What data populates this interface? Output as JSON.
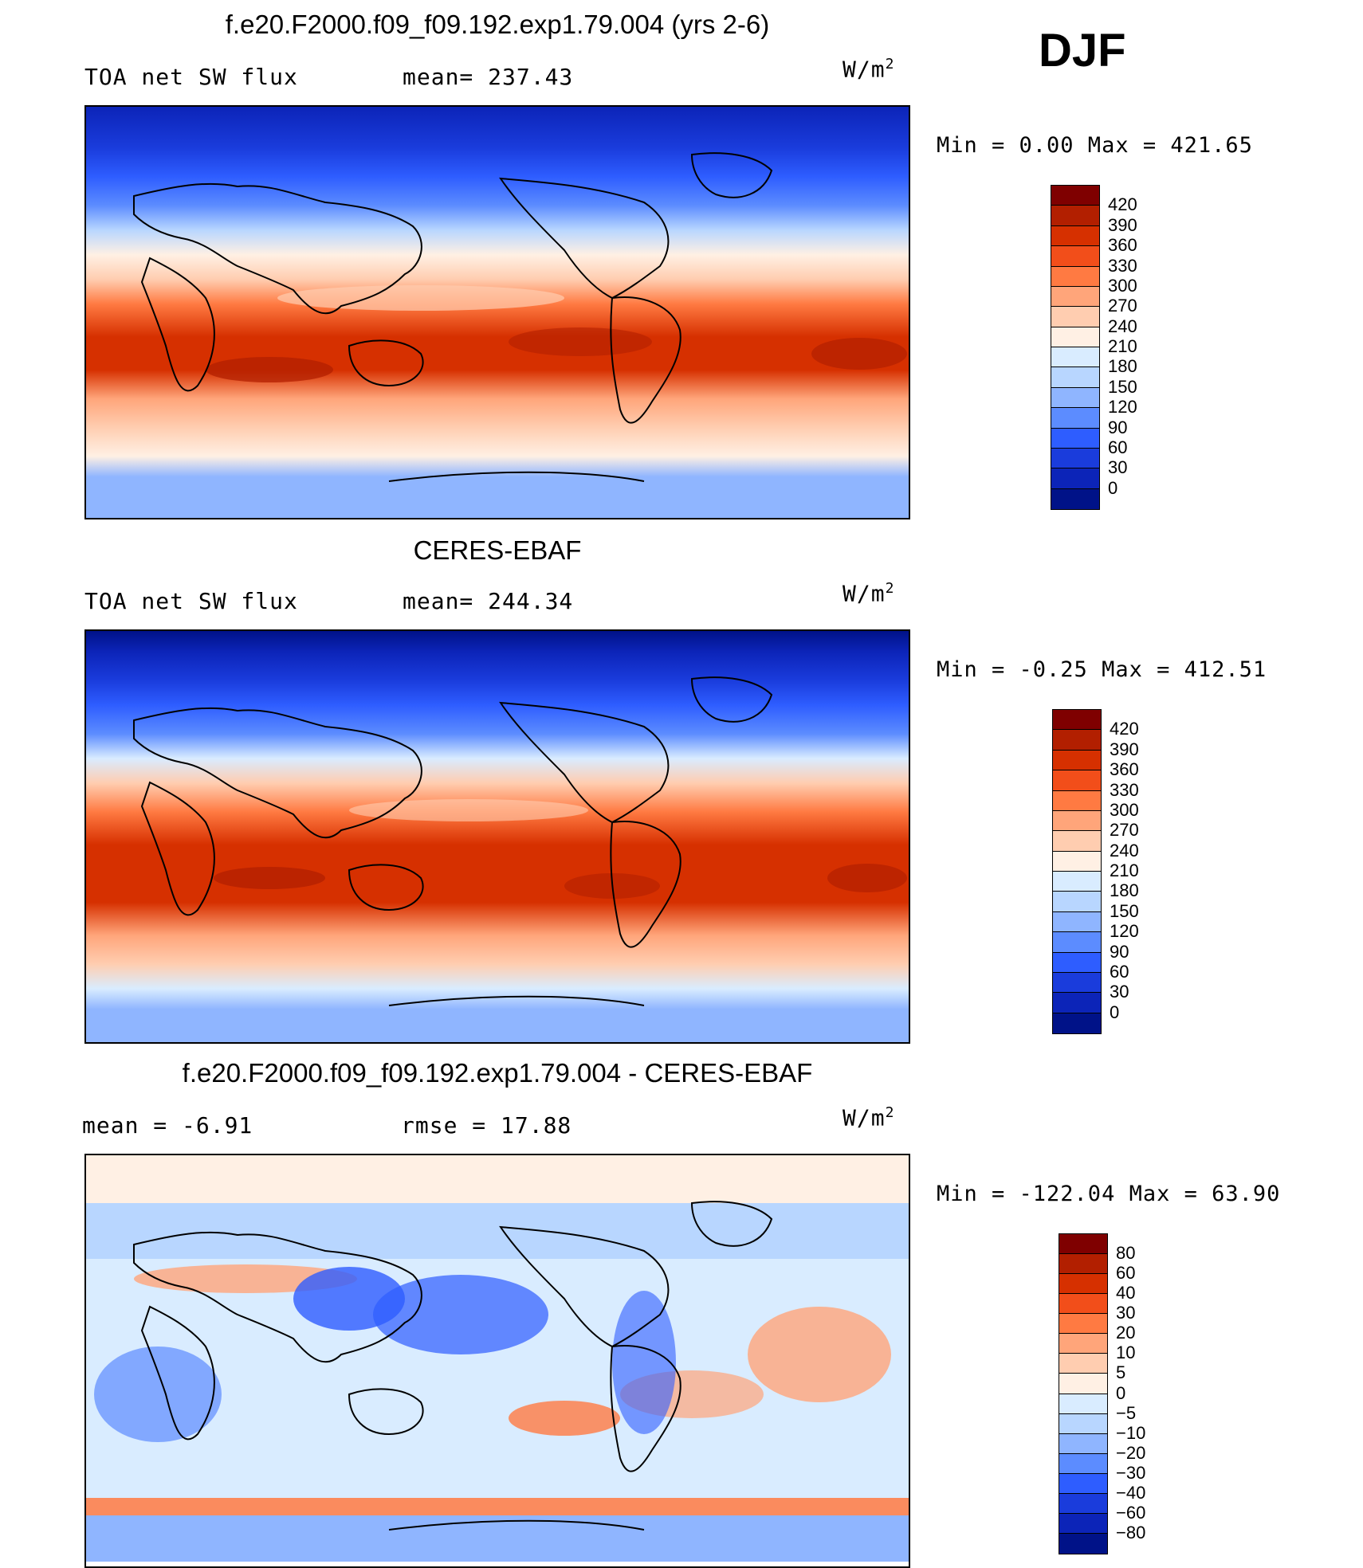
{
  "season": "DJF",
  "panels": [
    {
      "title": "f.e20.F2000.f09_f09.192.exp1.79.004 (yrs 2-6)",
      "left_label": "TOA net SW flux",
      "center_label": "mean= 237.43",
      "units_base": "W/m",
      "units_exp": "2",
      "minmax": "Min =    0.00 Max = 421.65",
      "colorbar": {
        "labels": [
          "420",
          "390",
          "360",
          "330",
          "300",
          "270",
          "240",
          "210",
          "180",
          "150",
          "120",
          "90",
          "60",
          "30",
          "0"
        ],
        "colors": [
          "#7f0000",
          "#b21f00",
          "#d63000",
          "#f24e1a",
          "#ff7a42",
          "#ffa57a",
          "#ffcdb0",
          "#fff0e4",
          "#d9ecff",
          "#b8d6ff",
          "#8fb5ff",
          "#5c8cff",
          "#2e5dff",
          "#1a3cdc",
          "#0c24b8",
          "#001288"
        ]
      }
    },
    {
      "title": "CERES-EBAF",
      "left_label": "TOA net SW flux",
      "center_label": "mean= 244.34",
      "units_base": "W/m",
      "units_exp": "2",
      "minmax": "Min =  -0.25 Max = 412.51",
      "colorbar": {
        "labels": [
          "420",
          "390",
          "360",
          "330",
          "300",
          "270",
          "240",
          "210",
          "180",
          "150",
          "120",
          "90",
          "60",
          "30",
          "0"
        ],
        "colors": [
          "#7f0000",
          "#b21f00",
          "#d63000",
          "#f24e1a",
          "#ff7a42",
          "#ffa57a",
          "#ffcdb0",
          "#fff0e4",
          "#d9ecff",
          "#b8d6ff",
          "#8fb5ff",
          "#5c8cff",
          "#2e5dff",
          "#1a3cdc",
          "#0c24b8",
          "#001288"
        ]
      }
    },
    {
      "title": "f.e20.F2000.f09_f09.192.exp1.79.004 - CERES-EBAF",
      "left_label": "mean =   -6.91",
      "center_label": "rmse =   17.88",
      "units_base": "W/m",
      "units_exp": "2",
      "minmax": "Min = -122.04 Max =  63.90",
      "colorbar": {
        "labels": [
          "80",
          "60",
          "40",
          "30",
          "20",
          "10",
          "5",
          "0",
          "-5",
          "-10",
          "-20",
          "-30",
          "-40",
          "-60",
          "-80"
        ],
        "colors": [
          "#7f0000",
          "#b21f00",
          "#d63000",
          "#f24e1a",
          "#ff7a42",
          "#ffa57a",
          "#ffcdb0",
          "#fff0e4",
          "#d9ecff",
          "#b8d6ff",
          "#8fb5ff",
          "#5c8cff",
          "#2e5dff",
          "#1a3cdc",
          "#0c24b8",
          "#001288"
        ]
      }
    }
  ]
}
